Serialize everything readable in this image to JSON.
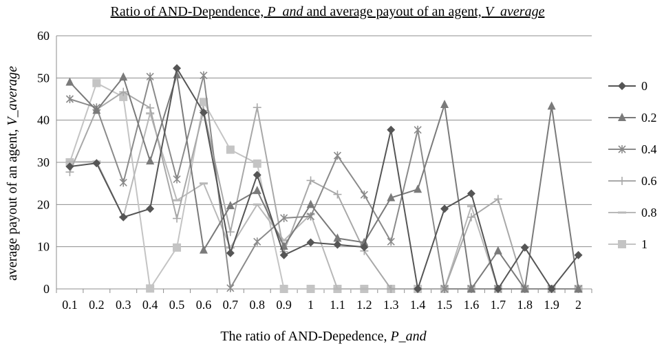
{
  "chart_data": {
    "type": "line",
    "title": "Ratio of AND-Dependence, P_and and average payout of an agent, V_average",
    "title_parts": {
      "prefix": "Ratio of AND-Dependence, ",
      "p_var": "P_and",
      "middle": " and average payout of an agent, ",
      "v_var": "V_average"
    },
    "xlabel": "The ratio of AND-Depedence, P_and",
    "xlabel_parts": {
      "prefix": "The ratio of AND-Depedence, ",
      "var": "P_and"
    },
    "ylabel": "average payout of an agent, V_average",
    "ylabel_parts": {
      "prefix": "average payout of an agent, ",
      "var": "V_average"
    },
    "categories": [
      "0.1",
      "0.2",
      "0.3",
      "0.4",
      "0.5",
      "0.6",
      "0.7",
      "0.8",
      "0.9",
      "1",
      "1.1",
      "1.2",
      "1.3",
      "1.4",
      "1.5",
      "1.6",
      "1.7",
      "1.8",
      "1.9",
      "2"
    ],
    "ylim": [
      0,
      60
    ],
    "yticks": [
      "0",
      "10",
      "20",
      "30",
      "40",
      "50",
      "60"
    ],
    "grid": "horizontal",
    "legend_position": "right",
    "series": [
      {
        "name": "0",
        "marker": "diamond",
        "color": "#555555",
        "values": [
          29,
          29.8,
          17,
          19,
          52.3,
          41.8,
          8.5,
          27,
          8,
          11,
          10.5,
          9.9,
          37.7,
          0,
          19,
          22.6,
          0,
          9.8,
          0,
          8
        ]
      },
      {
        "name": "0.2",
        "marker": "triangle",
        "color": "#7a7a7a",
        "values": [
          49,
          42.3,
          50.2,
          30.3,
          50.7,
          9.2,
          19.7,
          23.3,
          10.1,
          20,
          12,
          11,
          21.6,
          23.6,
          43.7,
          0,
          9,
          0,
          43.3,
          0
        ]
      },
      {
        "name": "0.4",
        "marker": "star",
        "color": "#8a8a8a",
        "values": [
          45,
          43,
          25.2,
          50.3,
          26,
          50.6,
          0.2,
          11.2,
          16.8,
          17.2,
          31.6,
          22.3,
          11.2,
          37.7,
          0,
          0,
          0,
          0,
          0,
          0
        ]
      },
      {
        "name": "0.6",
        "marker": "plus",
        "color": "#a8a8a8",
        "values": [
          27.7,
          42.5,
          46.7,
          42.9,
          16.7,
          42.3,
          13.5,
          43,
          8.8,
          25.7,
          22.4,
          9,
          0,
          0,
          0,
          17,
          21.3,
          0,
          0,
          0
        ]
      },
      {
        "name": "0.8",
        "marker": "dash",
        "color": "#b8b8b8",
        "values": [
          30.1,
          30.2,
          17,
          41.6,
          21,
          25,
          9.8,
          20,
          11.5,
          17.7,
          0,
          0,
          0,
          0,
          0,
          19.6,
          0,
          0,
          0,
          0
        ]
      },
      {
        "name": "1",
        "marker": "square",
        "color": "#c4c4c4",
        "values": [
          30,
          48.8,
          45.5,
          0.1,
          9.8,
          44.3,
          33,
          29.7,
          0,
          0,
          0,
          0,
          0,
          0,
          0,
          0,
          0,
          0,
          0,
          0
        ]
      }
    ]
  }
}
